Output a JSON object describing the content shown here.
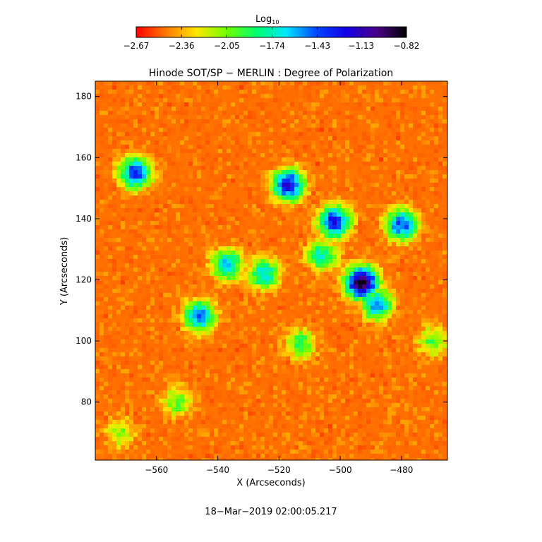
{
  "colorbar": {
    "label_base": "Log",
    "label_sub": "10",
    "ticks": [
      -2.67,
      -2.36,
      -2.05,
      -1.74,
      -1.43,
      -1.13,
      -0.82
    ],
    "tick_labels": [
      "−2.67",
      "−2.36",
      "−2.05",
      "−1.74",
      "−1.43",
      "−1.13",
      "−0.82"
    ],
    "colors": [
      "#ff0000",
      "#ff7a00",
      "#ffe600",
      "#73ff00",
      "#00ff6e",
      "#00e6ff",
      "#0047ff",
      "#1400e6",
      "#4a008a",
      "#000000"
    ]
  },
  "chart_data": {
    "type": "heatmap",
    "title": "Hinode SOT/SP − MERLIN : Degree of Polarization",
    "xlabel": "X (Arcseconds)",
    "ylabel": "Y (Arcseconds)",
    "xlim": [
      -580,
      -465
    ],
    "ylim": [
      61,
      185
    ],
    "xticks": [
      -560,
      -540,
      -520,
      -500,
      -480
    ],
    "xtick_labels": [
      "−560",
      "−540",
      "−520",
      "−500",
      "−480"
    ],
    "yticks": [
      80,
      100,
      120,
      140,
      160,
      180
    ],
    "ytick_labels": [
      "80",
      "100",
      "120",
      "140",
      "160",
      "180"
    ],
    "value_range": [
      -2.67,
      -0.82
    ],
    "value_scale": "log10",
    "background_level": -2.6,
    "features": [
      {
        "x": -493,
        "y": 119,
        "peak": -0.82
      },
      {
        "x": -502,
        "y": 139,
        "peak": -1.25
      },
      {
        "x": -506,
        "y": 128,
        "peak": -1.75
      },
      {
        "x": -517,
        "y": 151,
        "peak": -1.2
      },
      {
        "x": -567,
        "y": 155,
        "peak": -1.35
      },
      {
        "x": -546,
        "y": 108,
        "peak": -1.45
      },
      {
        "x": -537,
        "y": 125,
        "peak": -1.6
      },
      {
        "x": -525,
        "y": 122,
        "peak": -1.65
      },
      {
        "x": -480,
        "y": 138,
        "peak": -1.4
      },
      {
        "x": -488,
        "y": 112,
        "peak": -1.5
      },
      {
        "x": -513,
        "y": 99,
        "peak": -1.9
      },
      {
        "x": -572,
        "y": 70,
        "peak": -2.1
      },
      {
        "x": -553,
        "y": 80,
        "peak": -2.0
      },
      {
        "x": -470,
        "y": 100,
        "peak": -2.0
      }
    ]
  },
  "footer": {
    "timestamp": "18−Mar−2019 02:00:05.217"
  }
}
